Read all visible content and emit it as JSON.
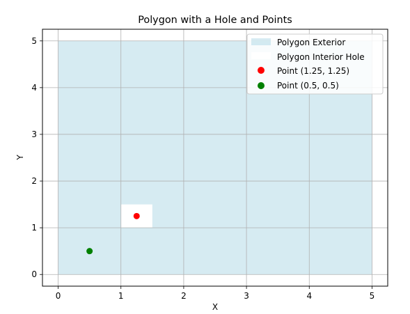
{
  "chart_data": {
    "type": "area",
    "title": "Polygon with a Hole and Points",
    "xlabel": "X",
    "ylabel": "Y",
    "xlim": [
      -0.25,
      5.25
    ],
    "ylim": [
      -0.25,
      5.25
    ],
    "xticks": [
      0,
      1,
      2,
      3,
      4,
      5
    ],
    "yticks": [
      0,
      1,
      2,
      3,
      4,
      5
    ],
    "xtick_labels": [
      "0",
      "1",
      "2",
      "3",
      "4",
      "5"
    ],
    "ytick_labels": [
      "0",
      "1",
      "2",
      "3",
      "4",
      "5"
    ],
    "grid": true,
    "legend_position": "top-right",
    "polygon_exterior": {
      "name": "Polygon Exterior",
      "color": "#add8e6",
      "opacity": 0.5,
      "points": [
        [
          0,
          0
        ],
        [
          5,
          0
        ],
        [
          5,
          5
        ],
        [
          0,
          5
        ]
      ]
    },
    "polygon_hole": {
      "name": "Polygon Interior Hole",
      "color": "#ffffff",
      "points": [
        [
          1,
          1
        ],
        [
          1.5,
          1
        ],
        [
          1.5,
          1.5
        ],
        [
          1,
          1.5
        ]
      ]
    },
    "points": [
      {
        "name": "Point (1.25, 1.25)",
        "x": 1.25,
        "y": 1.25,
        "color": "#ff0000"
      },
      {
        "name": "Point (0.5, 0.5)",
        "x": 0.5,
        "y": 0.5,
        "color": "#008000"
      }
    ]
  }
}
